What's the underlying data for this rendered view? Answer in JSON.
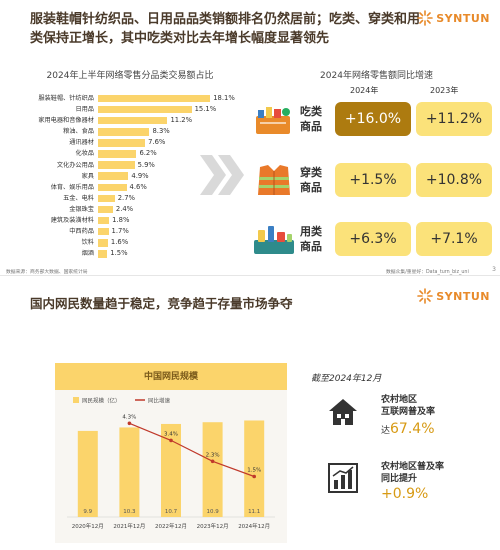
{
  "slide1": {
    "headline": "服装鞋帽针纺织品、日用品品类销额排名仍然居前；吃类、穿类和用类保持正增长，其中吃类对比去年增长幅度显著领先",
    "logo_text": "SYNTUN",
    "page_number": "3",
    "source_left": "数据来源：商务部大数据、国家统计局",
    "source_right": "数据众集/重星好：Data_turn_biz_uni",
    "colors": {
      "bar": "#fbd46b",
      "dark_box": "#ad7b10",
      "light_box": "#fbe27a",
      "brand": "#e88a2a"
    }
  },
  "slide2": {
    "headline": "国内网民数量趋于稳定，竞争趋于存量市场争夺",
    "logo_text": "SYNTUN",
    "as_of": "截至2024年12月",
    "stats": [
      {
        "icon": "house-icon",
        "label_line1": "农村地区",
        "label_line2": "互联网普及率",
        "prefix": "达",
        "value": "67.4%"
      },
      {
        "icon": "bar-growth-icon",
        "label_line1": "农村地区普及率",
        "label_line2": "同比提升",
        "prefix": "",
        "value": "+0.9%"
      }
    ]
  },
  "chart_data": [
    {
      "type": "bar",
      "orientation": "horizontal",
      "title": "2024年上半年网络零售分品类交易额占比",
      "categories": [
        "服装鞋帽、针纺织品",
        "日用品",
        "家用电器和音像器材",
        "粮油、食品",
        "通讯器材",
        "化妆品",
        "文化办公用品",
        "家具",
        "体育、娱乐用品",
        "五金、电料",
        "金银珠宝",
        "建筑及装潢材料",
        "中西药品",
        "饮料",
        "烟酒"
      ],
      "values": [
        18.1,
        15.1,
        11.2,
        8.3,
        7.6,
        6.2,
        5.9,
        4.9,
        4.6,
        2.7,
        2.4,
        1.8,
        1.7,
        1.6,
        1.5
      ],
      "value_labels": [
        "18.1%",
        "15.1%",
        "11.2%",
        "8.3%",
        "7.6%",
        "6.2%",
        "5.9%",
        "4.9%",
        "4.6%",
        "2.7%",
        "2.4%",
        "1.8%",
        "1.7%",
        "1.6%",
        "1.5%"
      ],
      "xlim": [
        0,
        20
      ],
      "grid": false
    },
    {
      "type": "table",
      "title": "2024年网络零售额同比增速",
      "columns": [
        "2024年",
        "2023年"
      ],
      "rows": [
        {
          "category": "吃类商品",
          "icon": "food-basket-icon",
          "values": [
            "+16.0%",
            "+11.2%"
          ]
        },
        {
          "category": "穿类商品",
          "icon": "vest-icon",
          "values": [
            "+1.5%",
            "+10.8%"
          ]
        },
        {
          "category": "用类商品",
          "icon": "cleaning-supplies-icon",
          "values": [
            "+6.3%",
            "+7.1%"
          ]
        }
      ]
    },
    {
      "type": "bar",
      "title": "中国网民规模",
      "categories": [
        "2020年12月",
        "2021年12月",
        "2022年12月",
        "2023年12月",
        "2024年12月"
      ],
      "series": [
        {
          "name": "网民规模（亿）",
          "kind": "bar",
          "values": [
            9.9,
            10.3,
            10.7,
            10.9,
            11.1
          ],
          "labels": [
            "9.9",
            "10.3",
            "10.7",
            "10.9",
            "11.1"
          ],
          "color": "#fbd46b"
        },
        {
          "name": "同比增速",
          "kind": "line",
          "values": [
            null,
            4.3,
            3.4,
            2.3,
            1.5
          ],
          "labels": [
            "",
            "4.3%",
            "3.4%",
            "2.3%",
            "1.5%"
          ],
          "color": "#c0392b"
        }
      ],
      "ylim": [
        0,
        11.5
      ],
      "y2lim": [
        0,
        5
      ],
      "legend": "top-left",
      "grid": false
    }
  ]
}
